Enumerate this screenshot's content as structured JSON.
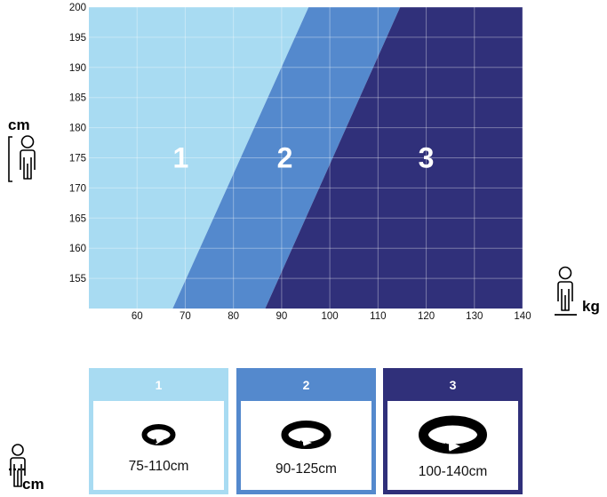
{
  "chart_data": {
    "type": "area",
    "xlabel": "kg",
    "ylabel": "cm",
    "xlim": [
      50,
      140
    ],
    "ylim": [
      150,
      200
    ],
    "x_ticks": [
      60,
      70,
      80,
      90,
      100,
      110,
      120,
      130,
      140
    ],
    "y_ticks": [
      155,
      160,
      165,
      170,
      175,
      180,
      185,
      190,
      195,
      200
    ],
    "grid": true,
    "zones": [
      {
        "label": "1",
        "color": "#a8dbf2"
      },
      {
        "label": "2",
        "color": "#5489cd"
      },
      {
        "label": "3",
        "color": "#30307a"
      }
    ],
    "boundaries": [
      {
        "between": "1-2",
        "points": [
          [
            67.4,
            150
          ],
          [
            95.6,
            200
          ]
        ]
      },
      {
        "between": "2-3",
        "points": [
          [
            86.6,
            150
          ],
          [
            114.6,
            200
          ]
        ]
      }
    ]
  },
  "legend": {
    "sizes": [
      {
        "number": "1",
        "range": "75-110cm",
        "color": "#a8dbf2",
        "icon": "small-belt-icon"
      },
      {
        "number": "2",
        "range": "90-125cm",
        "color": "#5489cd",
        "icon": "medium-belt-icon"
      },
      {
        "number": "3",
        "range": "100-140cm",
        "color": "#30307a",
        "icon": "large-belt-icon"
      }
    ],
    "unit": "cm"
  },
  "icons": {
    "height": "person-height-icon",
    "weight": "person-weight-icon",
    "waist": "person-waist-icon"
  }
}
